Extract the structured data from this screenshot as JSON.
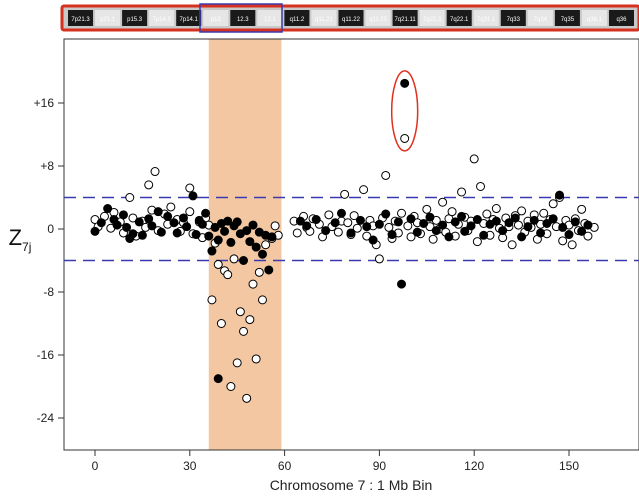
{
  "chart_data": {
    "type": "scatter",
    "title": "",
    "xlabel": "Chromosome 7 : 1 Mb Bin",
    "ylabel": "Z",
    "ylabel_subscript": "7j",
    "xlim": [
      -5,
      163
    ],
    "ylim": [
      -28,
      22
    ],
    "xticks": [
      0,
      30,
      60,
      90,
      120,
      150
    ],
    "yticks": [
      16,
      8,
      0,
      -8,
      -16,
      -24
    ],
    "ytick_labels": [
      "+16",
      "+8",
      "0",
      "-8",
      "-16",
      "-24"
    ],
    "threshold_lines": [
      4,
      -4
    ],
    "highlight_region": [
      36,
      59
    ],
    "highlight_color": "#f2c7a1",
    "threshold_color": "#3a3ab0",
    "ellipse_color": "#e0301e",
    "ellipse_center": [
      98,
      15
    ],
    "ideogram_bands": [
      "7p21.3",
      "p21.1",
      "p15.3",
      "7p14.3",
      "7p14.1",
      "p13",
      "12.3",
      "12.1",
      "q11.2",
      "q11.21",
      "q11.22",
      "q11.23",
      "7q21.11",
      "7q21.3",
      "7q22.1",
      "7q31.1",
      "7q33",
      "7q34",
      "7q35",
      "q36.1",
      "q36"
    ],
    "series": [
      {
        "fill": "#000000",
        "points": [
          [
            0,
            -0.3
          ],
          [
            2,
            0.8
          ],
          [
            4,
            2.6
          ],
          [
            6,
            1.2
          ],
          [
            7,
            0.5
          ],
          [
            9,
            1.8
          ],
          [
            10,
            0.2
          ],
          [
            11,
            -1.2
          ],
          [
            12,
            -0.6
          ],
          [
            14,
            0.9
          ],
          [
            15,
            -0.8
          ],
          [
            17,
            1.3
          ],
          [
            18,
            0.4
          ],
          [
            20,
            2.2
          ],
          [
            21,
            -0.4
          ],
          [
            23,
            1.6
          ],
          [
            25,
            0.8
          ],
          [
            26,
            -0.5
          ],
          [
            28,
            1.4
          ],
          [
            29,
            0.3
          ],
          [
            31,
            4.2
          ],
          [
            32,
            -0.7
          ],
          [
            33,
            1.1
          ],
          [
            34,
            0.6
          ],
          [
            35,
            2.0
          ],
          [
            36,
            -0.9
          ],
          [
            37,
            -2.8
          ],
          [
            38,
            0.2
          ],
          [
            39,
            -1.4
          ],
          [
            40,
            0.7
          ],
          [
            41,
            -0.3
          ],
          [
            42,
            1.0
          ],
          [
            43,
            -1.7
          ],
          [
            44,
            0.4
          ],
          [
            45,
            0.9
          ],
          [
            46,
            -0.6
          ],
          [
            47,
            -4.0
          ],
          [
            48,
            -0.2
          ],
          [
            49,
            -1.6
          ],
          [
            50,
            0.5
          ],
          [
            51,
            -2.3
          ],
          [
            52,
            -0.4
          ],
          [
            53,
            -3.2
          ],
          [
            54,
            -0.8
          ],
          [
            55,
            -5.2
          ],
          [
            56,
            -1.0
          ],
          [
            39,
            -19
          ],
          [
            65,
            1.0
          ],
          [
            67,
            0.4
          ],
          [
            70,
            1.2
          ],
          [
            73,
            -0.2
          ],
          [
            76,
            0.8
          ],
          [
            78,
            2.0
          ],
          [
            81,
            -0.5
          ],
          [
            84,
            1.1
          ],
          [
            86,
            0.3
          ],
          [
            88,
            -1.4
          ],
          [
            90,
            0.6
          ],
          [
            92,
            1.9
          ],
          [
            94,
            -0.7
          ],
          [
            96,
            0.9
          ],
          [
            97,
            -7.0
          ],
          [
            98,
            18.5
          ],
          [
            100,
            1.3
          ],
          [
            102,
            -0.4
          ],
          [
            104,
            0.7
          ],
          [
            106,
            1.5
          ],
          [
            108,
            -0.2
          ],
          [
            110,
            0.5
          ],
          [
            112,
            -1.0
          ],
          [
            114,
            0.9
          ],
          [
            116,
            1.6
          ],
          [
            117,
            -0.3
          ],
          [
            119,
            0.4
          ],
          [
            121,
            1.2
          ],
          [
            123,
            -0.8
          ],
          [
            125,
            0.6
          ],
          [
            127,
            1.0
          ],
          [
            129,
            -0.2
          ],
          [
            131,
            0.8
          ],
          [
            133,
            1.4
          ],
          [
            135,
            -1.0
          ],
          [
            137,
            0.3
          ],
          [
            139,
            1.1
          ],
          [
            141,
            -0.5
          ],
          [
            143,
            0.7
          ],
          [
            145,
            1.3
          ],
          [
            147,
            4.3
          ],
          [
            148,
            0.2
          ],
          [
            150,
            -0.7
          ],
          [
            152,
            0.9
          ],
          [
            154,
            -0.3
          ],
          [
            156,
            0.5
          ]
        ]
      },
      {
        "fill": "#ffffff",
        "points": [
          [
            0,
            1.2
          ],
          [
            1,
            0.3
          ],
          [
            3,
            1.6
          ],
          [
            5,
            0.1
          ],
          [
            6,
            2.1
          ],
          [
            8,
            0.9
          ],
          [
            9,
            -0.5
          ],
          [
            11,
            4.0
          ],
          [
            12,
            1.4
          ],
          [
            13,
            -0.9
          ],
          [
            15,
            1.0
          ],
          [
            16,
            0.2
          ],
          [
            17,
            5.6
          ],
          [
            18,
            2.4
          ],
          [
            19,
            7.3
          ],
          [
            20,
            -0.2
          ],
          [
            22,
            1.9
          ],
          [
            23,
            0.6
          ],
          [
            24,
            2.8
          ],
          [
            26,
            1.2
          ],
          [
            27,
            -0.3
          ],
          [
            28,
            0.8
          ],
          [
            30,
            5.2
          ],
          [
            30,
            2.2
          ],
          [
            31,
            -0.6
          ],
          [
            33,
            0.9
          ],
          [
            34,
            -1.1
          ],
          [
            35,
            1.4
          ],
          [
            36,
            0.5
          ],
          [
            37,
            -9.0
          ],
          [
            38,
            -1.8
          ],
          [
            39,
            -4.5
          ],
          [
            40,
            -12.0
          ],
          [
            41,
            -5.3
          ],
          [
            42,
            -5.8
          ],
          [
            43,
            -20.0
          ],
          [
            44,
            -3.8
          ],
          [
            45,
            -17.0
          ],
          [
            46,
            -10.5
          ],
          [
            47,
            -13.0
          ],
          [
            48,
            -21.5
          ],
          [
            49,
            -11.5
          ],
          [
            50,
            -7.0
          ],
          [
            51,
            -16.5
          ],
          [
            52,
            -5.5
          ],
          [
            53,
            -9.0
          ],
          [
            54,
            -2.0
          ],
          [
            56,
            -1.2
          ],
          [
            57,
            0.4
          ],
          [
            58,
            -0.8
          ],
          [
            63,
            1.0
          ],
          [
            64,
            -0.5
          ],
          [
            66,
            1.6
          ],
          [
            67,
            0.2
          ],
          [
            68,
            -0.3
          ],
          [
            69,
            1.3
          ],
          [
            71,
            0.6
          ],
          [
            72,
            -1.0
          ],
          [
            74,
            1.8
          ],
          [
            75,
            0.3
          ],
          [
            77,
            -0.4
          ],
          [
            78,
            1.0
          ],
          [
            79,
            4.4
          ],
          [
            80,
            0.8
          ],
          [
            81,
            -0.7
          ],
          [
            82,
            1.7
          ],
          [
            83,
            0.1
          ],
          [
            85,
            5.0
          ],
          [
            86,
            -0.9
          ],
          [
            87,
            1.1
          ],
          [
            88,
            0.4
          ],
          [
            89,
            -2.0
          ],
          [
            90,
            -3.8
          ],
          [
            91,
            1.4
          ],
          [
            92,
            6.8
          ],
          [
            93,
            0.2
          ],
          [
            94,
            -1.2
          ],
          [
            95,
            1.0
          ],
          [
            96,
            -0.5
          ],
          [
            97,
            2.0
          ],
          [
            98,
            11.5
          ],
          [
            99,
            0.4
          ],
          [
            100,
            -1.0
          ],
          [
            101,
            1.6
          ],
          [
            102,
            0.8
          ],
          [
            103,
            -0.6
          ],
          [
            105,
            2.5
          ],
          [
            106,
            0.3
          ],
          [
            107,
            -1.3
          ],
          [
            108,
            1.1
          ],
          [
            109,
            0.0
          ],
          [
            110,
            3.4
          ],
          [
            111,
            -0.4
          ],
          [
            112,
            1.3
          ],
          [
            113,
            2.2
          ],
          [
            114,
            -0.9
          ],
          [
            115,
            0.6
          ],
          [
            116,
            4.7
          ],
          [
            117,
            1.5
          ],
          [
            118,
            -0.2
          ],
          [
            119,
            1.0
          ],
          [
            120,
            8.9
          ],
          [
            121,
            -1.6
          ],
          [
            122,
            5.4
          ],
          [
            123,
            0.7
          ],
          [
            124,
            1.9
          ],
          [
            125,
            -0.8
          ],
          [
            126,
            1.2
          ],
          [
            127,
            2.6
          ],
          [
            128,
            0.1
          ],
          [
            129,
            -1.1
          ],
          [
            130,
            1.4
          ],
          [
            131,
            0.3
          ],
          [
            132,
            -2.0
          ],
          [
            133,
            1.7
          ],
          [
            134,
            0.5
          ],
          [
            135,
            2.3
          ],
          [
            136,
            -0.4
          ],
          [
            137,
            1.0
          ],
          [
            138,
            0.2
          ],
          [
            139,
            1.8
          ],
          [
            140,
            -1.3
          ],
          [
            141,
            0.6
          ],
          [
            142,
            2.0
          ],
          [
            143,
            -0.6
          ],
          [
            144,
            1.2
          ],
          [
            145,
            3.2
          ],
          [
            146,
            0.3
          ],
          [
            147,
            4.0
          ],
          [
            148,
            -1.5
          ],
          [
            149,
            1.1
          ],
          [
            150,
            0.5
          ],
          [
            151,
            -2.0
          ],
          [
            152,
            1.3
          ],
          [
            153,
            -0.2
          ],
          [
            154,
            2.5
          ],
          [
            155,
            0.7
          ],
          [
            156,
            -0.9
          ],
          [
            158,
            0.2
          ]
        ]
      }
    ]
  }
}
